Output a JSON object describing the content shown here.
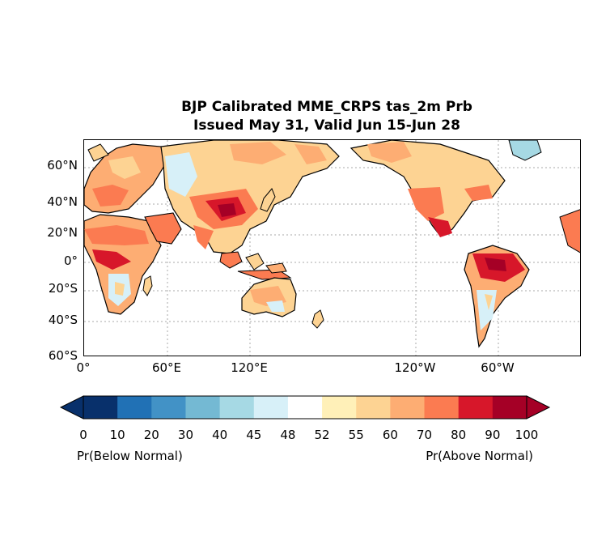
{
  "title": {
    "line1": "BJP Calibrated MME_CRPS tas_2m Prb",
    "line2": "Issued May 31, Valid Jun 15-Jun 28"
  },
  "map": {
    "lat_labels": [
      "60°N",
      "40°N",
      "20°N",
      "0°",
      "20°S",
      "40°S",
      "60°S"
    ],
    "lon_labels": [
      "0°",
      "60°E",
      "120°E",
      "120°W",
      "60°W"
    ],
    "gridlines": true,
    "projection": "Mercator, centered on Pacific"
  },
  "colorbar": {
    "ticks": [
      "0",
      "10",
      "20",
      "30",
      "40",
      "45",
      "48",
      "52",
      "55",
      "60",
      "70",
      "80",
      "90",
      "100"
    ],
    "colors": [
      "#08306b",
      "#2171b5",
      "#4292c6",
      "#74b9d3",
      "#a6d9e4",
      "#d7f0f8",
      "#ffffff",
      "#fff0b8",
      "#fdd393",
      "#fdad73",
      "#fb7b51",
      "#d7172a",
      "#a50026"
    ],
    "left_caption": "Pr(Below Normal)",
    "right_caption": "Pr(Above Normal)"
  }
}
